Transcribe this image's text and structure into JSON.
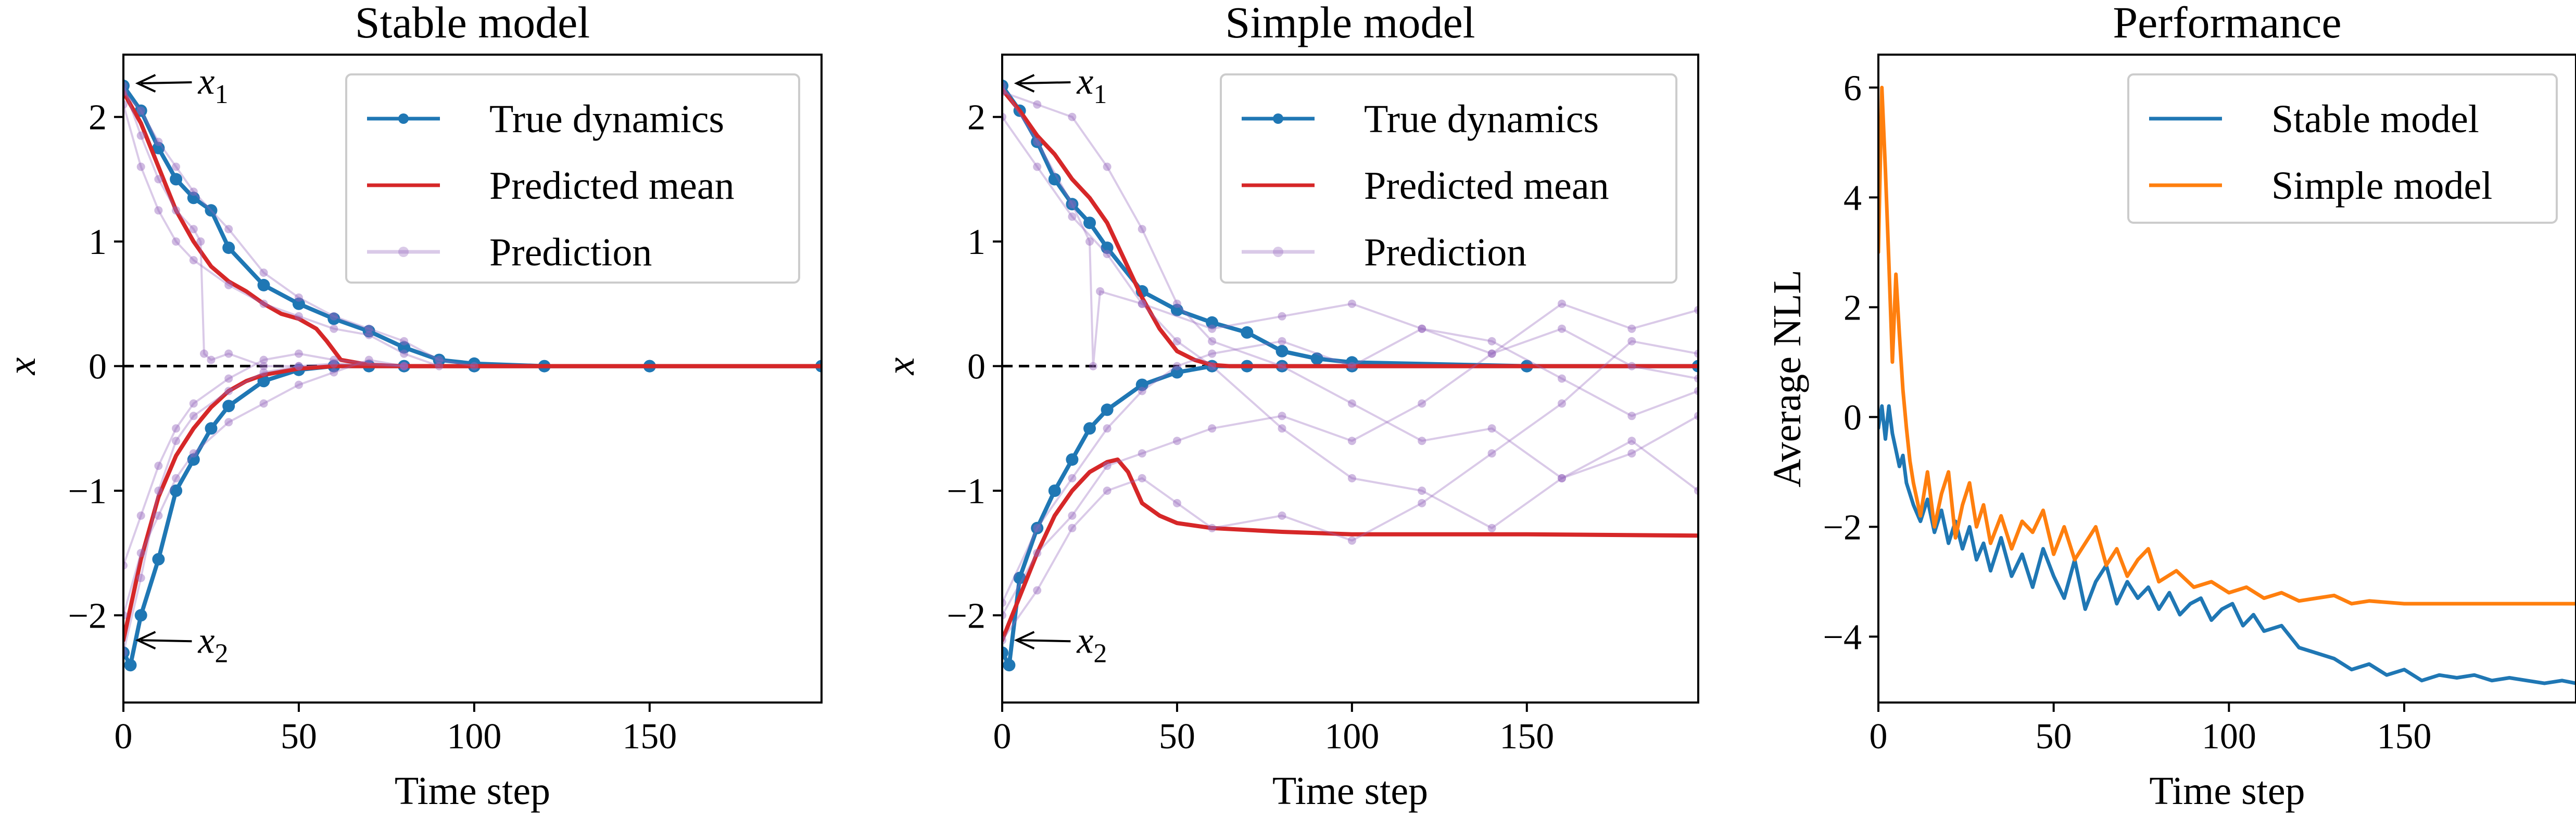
{
  "chart_data": [
    {
      "type": "line",
      "title": "Stable model",
      "xlabel": "Time step",
      "ylabel": "x",
      "xlim": [
        0,
        199
      ],
      "ylim": [
        -2.7,
        2.5
      ],
      "xticks": [
        0,
        50,
        100,
        150
      ],
      "yticks": [
        -2,
        -1,
        0,
        1,
        2
      ],
      "grid": false,
      "legend_position": "top-right",
      "legend": [
        "True dynamics",
        "Predicted mean",
        "Prediction"
      ],
      "reference_line": {
        "y": 0,
        "style": "dashed"
      },
      "annotations": [
        {
          "text": "x",
          "subscript": "1",
          "x": 2,
          "y": 2.27
        },
        {
          "text": "x",
          "subscript": "2",
          "x": 2,
          "y": -2.2
        }
      ],
      "series": [
        {
          "name": "True dynamics",
          "role": "true",
          "x": [
            0,
            5,
            10,
            15,
            20,
            25,
            30,
            40,
            50,
            60,
            70,
            80,
            90,
            100,
            120,
            150,
            199
          ],
          "y": [
            2.25,
            2.05,
            1.75,
            1.5,
            1.35,
            1.25,
            0.95,
            0.65,
            0.5,
            0.38,
            0.28,
            0.15,
            0.05,
            0.02,
            0.0,
            0.0,
            0.0
          ]
        },
        {
          "role": "true",
          "x": [
            0,
            2,
            5,
            10,
            15,
            20,
            25,
            30,
            40,
            50,
            60,
            70,
            80,
            100,
            150,
            199
          ],
          "y": [
            -2.3,
            -2.4,
            -2.0,
            -1.55,
            -1.0,
            -0.75,
            -0.5,
            -0.32,
            -0.12,
            -0.03,
            0.0,
            0.0,
            0.0,
            0.0,
            0.0,
            0.0
          ]
        },
        {
          "name": "Predicted mean",
          "role": "mean",
          "x": [
            0,
            5,
            10,
            15,
            20,
            25,
            30,
            35,
            40,
            45,
            50,
            55,
            58,
            62,
            70,
            80,
            100,
            150,
            199
          ],
          "y": [
            2.2,
            1.95,
            1.6,
            1.25,
            1.0,
            0.8,
            0.68,
            0.6,
            0.5,
            0.42,
            0.38,
            0.3,
            0.2,
            0.05,
            0.01,
            0.0,
            0.0,
            0.0,
            0.0
          ]
        },
        {
          "role": "mean",
          "x": [
            0,
            5,
            10,
            15,
            20,
            25,
            30,
            35,
            40,
            50,
            60,
            70,
            80,
            100,
            150,
            199
          ],
          "y": [
            -2.2,
            -1.55,
            -1.05,
            -0.72,
            -0.5,
            -0.33,
            -0.2,
            -0.12,
            -0.07,
            -0.02,
            0.0,
            0.0,
            0.0,
            0.0,
            0.0,
            0.0
          ]
        },
        {
          "name": "Prediction",
          "role": "sample",
          "x": [
            0,
            5,
            10,
            15,
            20,
            22,
            23,
            25,
            30,
            40,
            50
          ],
          "y": [
            2.25,
            1.85,
            1.5,
            1.25,
            1.1,
            1.0,
            0.1,
            0.05,
            0.1,
            0.0,
            0.0
          ]
        },
        {
          "role": "sample",
          "x": [
            0,
            5,
            10,
            15,
            20,
            30,
            40,
            50,
            60,
            70,
            80,
            90,
            100
          ],
          "y": [
            2.2,
            2.05,
            1.8,
            1.6,
            1.4,
            1.1,
            0.75,
            0.55,
            0.4,
            0.3,
            0.2,
            0.05,
            0.0
          ]
        },
        {
          "role": "sample",
          "x": [
            0,
            5,
            10,
            15,
            20,
            30,
            40,
            50,
            60,
            70,
            80,
            90
          ],
          "y": [
            2.1,
            1.6,
            1.25,
            1.0,
            0.85,
            0.65,
            0.5,
            0.4,
            0.3,
            0.25,
            0.1,
            0.0
          ]
        },
        {
          "role": "sample",
          "x": [
            0,
            5,
            10,
            15,
            20,
            30,
            40,
            50,
            60,
            70,
            80
          ],
          "y": [
            -2.0,
            -1.5,
            -1.2,
            -0.9,
            -0.7,
            -0.45,
            -0.3,
            -0.15,
            -0.05,
            0.05,
            0.0
          ]
        },
        {
          "role": "sample",
          "x": [
            0,
            5,
            10,
            15,
            20,
            30,
            40,
            50,
            60,
            80
          ],
          "y": [
            -2.3,
            -1.7,
            -1.0,
            -0.6,
            -0.4,
            -0.2,
            -0.05,
            0.0,
            0.02,
            0.0
          ]
        },
        {
          "role": "sample",
          "x": [
            0,
            5,
            10,
            15,
            20,
            30,
            40,
            50,
            60,
            80
          ],
          "y": [
            -1.6,
            -1.2,
            -0.8,
            -0.5,
            -0.3,
            -0.1,
            0.05,
            0.1,
            0.05,
            0.0
          ]
        }
      ]
    },
    {
      "type": "line",
      "title": "Simple model",
      "xlabel": "Time step",
      "ylabel": "x",
      "xlim": [
        0,
        199
      ],
      "ylim": [
        -2.7,
        2.5
      ],
      "xticks": [
        0,
        50,
        100,
        150
      ],
      "yticks": [
        -2,
        -1,
        0,
        1,
        2
      ],
      "grid": false,
      "legend_position": "top-right",
      "legend": [
        "True dynamics",
        "Predicted mean",
        "Prediction"
      ],
      "reference_line": {
        "y": 0,
        "style": "dashed"
      },
      "annotations": [
        {
          "text": "x",
          "subscript": "1",
          "x": 2,
          "y": 2.27
        },
        {
          "text": "x",
          "subscript": "2",
          "x": 2,
          "y": -2.2
        }
      ],
      "series": [
        {
          "name": "True dynamics",
          "role": "true",
          "x": [
            0,
            5,
            10,
            15,
            20,
            25,
            30,
            40,
            50,
            60,
            70,
            80,
            90,
            100,
            150,
            199
          ],
          "y": [
            2.25,
            2.05,
            1.8,
            1.5,
            1.3,
            1.15,
            0.95,
            0.6,
            0.45,
            0.35,
            0.27,
            0.12,
            0.06,
            0.03,
            0.0,
            0.0
          ]
        },
        {
          "role": "true",
          "x": [
            0,
            2,
            5,
            10,
            15,
            20,
            25,
            30,
            40,
            50,
            60,
            70,
            80,
            100,
            150,
            199
          ],
          "y": [
            -2.3,
            -2.4,
            -1.7,
            -1.3,
            -1.0,
            -0.75,
            -0.5,
            -0.35,
            -0.15,
            -0.05,
            0.0,
            0.0,
            0.0,
            0.0,
            0.0,
            0.0
          ]
        },
        {
          "name": "Predicted mean",
          "role": "mean",
          "x": [
            0,
            5,
            10,
            15,
            20,
            25,
            30,
            35,
            40,
            45,
            50,
            55,
            60,
            65,
            70,
            80,
            100,
            150,
            199
          ],
          "y": [
            2.22,
            2.05,
            1.85,
            1.7,
            1.5,
            1.35,
            1.15,
            0.85,
            0.55,
            0.3,
            0.12,
            0.05,
            0.01,
            0.0,
            0.0,
            0.0,
            0.0,
            0.0,
            0.0
          ]
        },
        {
          "role": "mean",
          "x": [
            0,
            5,
            10,
            15,
            20,
            25,
            30,
            33,
            36,
            40,
            45,
            50,
            60,
            80,
            100,
            150,
            199
          ],
          "y": [
            -2.2,
            -1.85,
            -1.5,
            -1.2,
            -1.0,
            -0.85,
            -0.77,
            -0.75,
            -0.85,
            -1.1,
            -1.2,
            -1.26,
            -1.3,
            -1.33,
            -1.35,
            -1.35,
            -1.36
          ]
        },
        {
          "name": "Prediction",
          "role": "sample",
          "x": [
            0,
            10,
            20,
            25,
            26,
            28,
            40,
            60,
            80,
            100,
            120,
            140,
            160,
            180,
            199
          ],
          "y": [
            2.25,
            1.8,
            1.3,
            1.0,
            0.0,
            0.6,
            0.5,
            0.3,
            0.4,
            0.5,
            0.3,
            0.1,
            0.5,
            0.3,
            0.45
          ]
        },
        {
          "role": "sample",
          "x": [
            0,
            10,
            20,
            30,
            40,
            50,
            60,
            80,
            100,
            120,
            140,
            160,
            180,
            199
          ],
          "y": [
            2.2,
            2.1,
            2.0,
            1.6,
            1.1,
            0.5,
            0.2,
            0.0,
            -0.3,
            -0.6,
            -0.5,
            -0.9,
            -0.7,
            -0.4
          ]
        },
        {
          "role": "sample",
          "x": [
            0,
            10,
            20,
            30,
            40,
            50,
            60,
            80,
            100,
            120,
            140,
            160,
            180,
            199
          ],
          "y": [
            2.0,
            1.6,
            1.2,
            0.9,
            0.5,
            0.2,
            0.0,
            -0.5,
            -0.9,
            -1.0,
            -1.3,
            -0.9,
            -0.6,
            -1.0
          ]
        },
        {
          "role": "sample",
          "x": [
            0,
            10,
            20,
            30,
            40,
            50,
            60,
            80,
            100,
            120,
            140,
            160,
            180,
            199
          ],
          "y": [
            -2.0,
            -1.5,
            -1.2,
            -0.8,
            -0.7,
            -0.6,
            -0.5,
            -0.4,
            -0.6,
            -0.3,
            0.1,
            0.3,
            0.0,
            -0.1
          ]
        },
        {
          "role": "sample",
          "x": [
            0,
            10,
            20,
            30,
            40,
            50,
            60,
            80,
            100,
            120,
            140,
            160,
            180,
            199
          ],
          "y": [
            -2.2,
            -1.8,
            -1.3,
            -1.0,
            -0.9,
            -1.1,
            -1.3,
            -1.2,
            -1.4,
            -1.1,
            -0.7,
            -0.3,
            0.2,
            0.1
          ]
        },
        {
          "role": "sample",
          "x": [
            0,
            10,
            20,
            30,
            40,
            50,
            60,
            80,
            100,
            120,
            140,
            160,
            180,
            199
          ],
          "y": [
            -1.9,
            -1.3,
            -0.9,
            -0.5,
            -0.2,
            0.0,
            0.1,
            0.2,
            0.0,
            0.3,
            0.2,
            -0.1,
            -0.4,
            -0.2
          ]
        }
      ]
    },
    {
      "type": "line",
      "title": "Performance",
      "xlabel": "Time step",
      "ylabel": "Average NLL",
      "xlim": [
        0,
        199
      ],
      "ylim": [
        -5.2,
        6.6
      ],
      "xticks": [
        0,
        50,
        100,
        150
      ],
      "yticks": [
        -4,
        -2,
        0,
        2,
        4,
        6
      ],
      "grid": false,
      "legend_position": "top-right",
      "series": [
        {
          "name": "Stable model",
          "color": "#1f77b4",
          "x": [
            0,
            1,
            2,
            3,
            4,
            5,
            6,
            7,
            8,
            10,
            12,
            14,
            16,
            18,
            20,
            22,
            24,
            26,
            28,
            30,
            32,
            35,
            38,
            41,
            44,
            47,
            50,
            53,
            56,
            59,
            62,
            65,
            68,
            71,
            74,
            77,
            80,
            83,
            86,
            89,
            92,
            95,
            98,
            101,
            104,
            107,
            110,
            115,
            120,
            125,
            130,
            135,
            140,
            145,
            150,
            155,
            160,
            165,
            170,
            175,
            180,
            185,
            190,
            195,
            199
          ],
          "y": [
            -0.2,
            0.2,
            -0.4,
            0.2,
            -0.3,
            -0.6,
            -0.9,
            -0.7,
            -1.2,
            -1.6,
            -1.9,
            -1.5,
            -2.1,
            -1.7,
            -2.3,
            -1.9,
            -2.4,
            -2.0,
            -2.6,
            -2.3,
            -2.8,
            -2.2,
            -2.9,
            -2.5,
            -3.1,
            -2.4,
            -2.9,
            -3.3,
            -2.6,
            -3.5,
            -3.0,
            -2.7,
            -3.4,
            -3.0,
            -3.3,
            -3.1,
            -3.5,
            -3.2,
            -3.6,
            -3.4,
            -3.3,
            -3.7,
            -3.5,
            -3.4,
            -3.8,
            -3.6,
            -3.9,
            -3.8,
            -4.2,
            -4.3,
            -4.4,
            -4.6,
            -4.5,
            -4.7,
            -4.6,
            -4.8,
            -4.7,
            -4.75,
            -4.7,
            -4.8,
            -4.75,
            -4.8,
            -4.85,
            -4.8,
            -4.85
          ]
        },
        {
          "name": "Simple model",
          "color": "#ff7f0e",
          "x": [
            0,
            1,
            2,
            3,
            4,
            5,
            6,
            7,
            8,
            9,
            10,
            12,
            14,
            16,
            18,
            20,
            22,
            24,
            26,
            28,
            30,
            32,
            35,
            38,
            41,
            44,
            47,
            50,
            53,
            56,
            59,
            62,
            65,
            68,
            71,
            74,
            77,
            80,
            85,
            90,
            95,
            100,
            105,
            110,
            115,
            120,
            125,
            130,
            135,
            140,
            150,
            160,
            170,
            180,
            190,
            199
          ],
          "y": [
            3.0,
            6.0,
            4.5,
            2.8,
            1.0,
            2.6,
            1.5,
            0.5,
            -0.2,
            -0.8,
            -1.2,
            -1.8,
            -1.0,
            -2.0,
            -1.4,
            -1.0,
            -2.2,
            -1.6,
            -1.2,
            -2.0,
            -1.6,
            -2.3,
            -1.8,
            -2.4,
            -1.9,
            -2.1,
            -1.7,
            -2.5,
            -2.0,
            -2.6,
            -2.3,
            -2.0,
            -2.7,
            -2.4,
            -2.9,
            -2.6,
            -2.4,
            -3.0,
            -2.8,
            -3.1,
            -3.0,
            -3.2,
            -3.1,
            -3.3,
            -3.2,
            -3.35,
            -3.3,
            -3.25,
            -3.4,
            -3.35,
            -3.4,
            -3.4,
            -3.4,
            -3.4,
            -3.4,
            -3.4
          ]
        }
      ]
    }
  ]
}
